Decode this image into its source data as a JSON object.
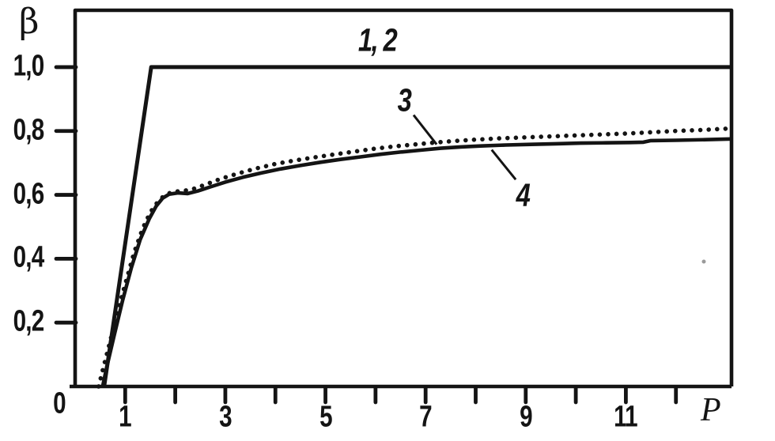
{
  "figure": {
    "background": "#ffffff",
    "ink_color": "#141414",
    "artifact_color": "#9a9a9a"
  },
  "chart_data": {
    "type": "line",
    "title": "",
    "xlabel": "P",
    "ylabel": "β",
    "xlim": [
      0,
      13.11
    ],
    "ylim": [
      0,
      1.178
    ],
    "grid": false,
    "legend_position": "none",
    "x_axis": {
      "origin_label": "0",
      "tick_positions": [
        1,
        2,
        3,
        4,
        5,
        6,
        7,
        8,
        9,
        10,
        11,
        12
      ],
      "tick_labels": {
        "1": "1",
        "3": "3",
        "5": "5",
        "7": "7",
        "9": "9",
        "11": "11"
      }
    },
    "y_axis": {
      "ticks": [
        {
          "value": 0.2,
          "label": "0,2"
        },
        {
          "value": 0.4,
          "label": "0,4"
        },
        {
          "value": 0.6,
          "label": "0,6"
        },
        {
          "value": 0.8,
          "label": "0,8"
        },
        {
          "value": 1.0,
          "label": "1,0"
        }
      ]
    },
    "series": [
      {
        "id": "curve-3",
        "label": "3",
        "style": "dotted",
        "points": [
          [
            0.47,
            0
          ],
          [
            0.55,
            0.05
          ],
          [
            0.68,
            0.13
          ],
          [
            0.85,
            0.235
          ],
          [
            1.0,
            0.32
          ],
          [
            1.18,
            0.42
          ],
          [
            1.35,
            0.495
          ],
          [
            1.5,
            0.545
          ],
          [
            1.65,
            0.578
          ],
          [
            1.78,
            0.598
          ],
          [
            1.95,
            0.61
          ],
          [
            2.15,
            0.612
          ],
          [
            2.35,
            0.618
          ],
          [
            2.6,
            0.632
          ],
          [
            2.9,
            0.65
          ],
          [
            3.25,
            0.667
          ],
          [
            3.6,
            0.682
          ],
          [
            4.0,
            0.697
          ],
          [
            4.4,
            0.708
          ],
          [
            4.8,
            0.718
          ],
          [
            5.2,
            0.727
          ],
          [
            5.6,
            0.736
          ],
          [
            6.0,
            0.745
          ],
          [
            6.4,
            0.752
          ],
          [
            6.8,
            0.758
          ],
          [
            7.2,
            0.764
          ],
          [
            7.6,
            0.769
          ],
          [
            8.0,
            0.773
          ],
          [
            8.5,
            0.777
          ],
          [
            9.0,
            0.78
          ],
          [
            9.5,
            0.783
          ],
          [
            10.0,
            0.786
          ],
          [
            10.5,
            0.789
          ],
          [
            11.0,
            0.792
          ],
          [
            11.5,
            0.796
          ],
          [
            12.0,
            0.8
          ],
          [
            12.5,
            0.803
          ],
          [
            13.11,
            0.808
          ]
        ]
      },
      {
        "id": "curve-4",
        "label": "4",
        "style": "solid",
        "points": [
          [
            0.55,
            0
          ],
          [
            0.63,
            0.06
          ],
          [
            0.78,
            0.16
          ],
          [
            0.95,
            0.27
          ],
          [
            1.12,
            0.37
          ],
          [
            1.3,
            0.46
          ],
          [
            1.48,
            0.525
          ],
          [
            1.62,
            0.565
          ],
          [
            1.75,
            0.59
          ],
          [
            1.88,
            0.602
          ],
          [
            2.05,
            0.606
          ],
          [
            2.25,
            0.604
          ],
          [
            2.45,
            0.612
          ],
          [
            2.7,
            0.625
          ],
          [
            3.0,
            0.64
          ],
          [
            3.35,
            0.655
          ],
          [
            3.7,
            0.668
          ],
          [
            4.1,
            0.681
          ],
          [
            4.5,
            0.692
          ],
          [
            4.9,
            0.702
          ],
          [
            5.3,
            0.711
          ],
          [
            5.7,
            0.719
          ],
          [
            6.1,
            0.727
          ],
          [
            6.5,
            0.734
          ],
          [
            6.9,
            0.74
          ],
          [
            7.3,
            0.746
          ],
          [
            7.7,
            0.75
          ],
          [
            8.1,
            0.753
          ],
          [
            8.6,
            0.756
          ],
          [
            9.1,
            0.758
          ],
          [
            9.6,
            0.76
          ],
          [
            10.1,
            0.762
          ],
          [
            10.6,
            0.763
          ],
          [
            11.1,
            0.764
          ],
          [
            11.35,
            0.765
          ],
          [
            11.5,
            0.77
          ],
          [
            12.0,
            0.771
          ],
          [
            12.6,
            0.773
          ],
          [
            13.11,
            0.775
          ]
        ]
      },
      {
        "id": "curves-1-2",
        "label": "1, 2",
        "style": "solid",
        "points": [
          [
            0.58,
            0
          ],
          [
            1.52,
            1.0
          ],
          [
            13.11,
            1.0
          ]
        ]
      }
    ],
    "annotations": [
      {
        "id": "1-2",
        "text": "1, 2",
        "x": 6.03,
        "y": 1.085,
        "leader": null
      },
      {
        "id": "3",
        "text": "3",
        "x": 6.57,
        "y": 0.896,
        "leader": [
          [
            6.76,
            0.85
          ],
          [
            7.22,
            0.758
          ]
        ]
      },
      {
        "id": "4",
        "text": "4",
        "x": 8.94,
        "y": 0.6,
        "leader": [
          [
            8.32,
            0.741
          ],
          [
            8.8,
            0.648
          ]
        ]
      }
    ]
  }
}
